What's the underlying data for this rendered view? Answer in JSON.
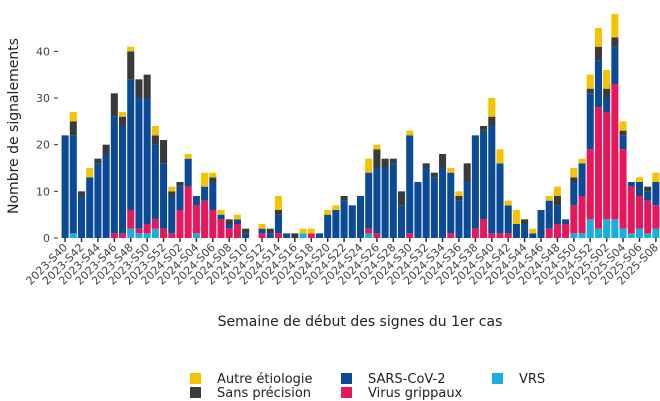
{
  "chart_data": {
    "type": "stacked_bar",
    "y_label": "Nombre de signalements",
    "x_label": "Semaine de début des signes du 1er cas",
    "categories": [
      "2023-S40",
      null,
      "2023-S42",
      null,
      "2023-S44",
      null,
      "2023-S46",
      null,
      "2023-S48",
      null,
      "2023-S50",
      null,
      "2023-S52",
      null,
      "2024-S02",
      null,
      "2024-S04",
      null,
      "2024-S06",
      null,
      "2024-S08",
      null,
      "2024-S10",
      null,
      "2024-S12",
      null,
      "2024-S14",
      null,
      "2024-S16",
      null,
      "2024-S18",
      null,
      "2024-S20",
      null,
      "2024-S22",
      null,
      "2024-S24",
      null,
      "2024-S26",
      null,
      "2024-S28",
      null,
      "2024-S30",
      null,
      "2024-S32",
      null,
      "2024-S34",
      null,
      "2024-S36",
      null,
      "2024-S38",
      null,
      "2024-S40",
      null,
      "2024-S42",
      null,
      "2024-S44",
      null,
      "2024-S46",
      null,
      "2024-S48",
      null,
      "2024-S50",
      null,
      "2024-S52",
      null,
      "2025-S02",
      null,
      "2025-S04",
      null,
      "2025-S06",
      null,
      "2025-S08"
    ],
    "series": [
      {
        "name": "Autre étiologie",
        "color": "#f5c400",
        "values": [
          0,
          2,
          0,
          2,
          0,
          0,
          0,
          1,
          1,
          0,
          0,
          2,
          0,
          1,
          0,
          1,
          0,
          3,
          1,
          1,
          0,
          1,
          0,
          0,
          1,
          0,
          3,
          0,
          0,
          1,
          1,
          0,
          1,
          1,
          0,
          0,
          0,
          3,
          1,
          0,
          0,
          0,
          1,
          0,
          0,
          0,
          0,
          1,
          1,
          0,
          0,
          0,
          4,
          3,
          1,
          3,
          0,
          1,
          0,
          1,
          2,
          0,
          2,
          1,
          3,
          4,
          4,
          5,
          2,
          0,
          1,
          0,
          2
        ]
      },
      {
        "name": "Sans précision",
        "color": "#3a3a3a",
        "values": [
          0,
          3,
          1,
          0,
          1,
          2,
          5,
          2,
          6,
          4,
          5,
          2,
          5,
          1,
          1,
          0,
          0,
          0,
          1,
          0,
          1,
          0,
          1,
          0,
          0,
          1,
          1,
          0,
          1,
          0,
          0,
          0,
          0,
          0,
          1,
          0,
          0,
          0,
          4,
          2,
          1,
          3,
          0,
          0,
          1,
          1,
          3,
          0,
          1,
          4,
          0,
          1,
          2,
          0,
          0,
          0,
          1,
          0,
          0,
          0,
          2,
          0,
          1,
          0,
          1,
          3,
          2,
          2,
          1,
          0,
          0,
          1,
          0
        ]
      },
      {
        "name": "SARS-CoV-2",
        "color": "#0a4a96",
        "values": [
          22,
          21,
          9,
          13,
          16,
          18,
          25,
          23,
          28,
          28,
          27,
          16,
          14,
          8,
          5,
          6,
          2,
          3,
          6,
          1,
          1,
          1,
          1,
          0,
          1,
          1,
          4,
          1,
          0,
          0,
          0,
          1,
          5,
          6,
          8,
          7,
          9,
          12,
          14,
          15,
          16,
          7,
          21,
          12,
          15,
          13,
          15,
          13,
          8,
          12,
          20,
          19,
          23,
          15,
          6,
          3,
          3,
          1,
          6,
          6,
          4,
          1,
          5,
          7,
          12,
          10,
          3,
          8,
          3,
          1,
          3,
          2,
          5
        ]
      },
      {
        "name": "Virus grippaux",
        "color": "#e6185c",
        "values": [
          0,
          0,
          0,
          0,
          0,
          0,
          1,
          1,
          4,
          1,
          2,
          2,
          2,
          1,
          6,
          11,
          6,
          8,
          6,
          4,
          2,
          3,
          0,
          0,
          1,
          0,
          1,
          0,
          0,
          0,
          1,
          0,
          0,
          0,
          0,
          0,
          0,
          1,
          1,
          0,
          0,
          0,
          1,
          0,
          0,
          0,
          0,
          1,
          0,
          0,
          2,
          4,
          1,
          1,
          1,
          0,
          0,
          0,
          0,
          2,
          3,
          3,
          6,
          8,
          15,
          26,
          23,
          29,
          17,
          10,
          7,
          7,
          5
        ]
      },
      {
        "name": "VRS",
        "color": "#19aee0",
        "values": [
          0,
          1,
          0,
          0,
          0,
          0,
          0,
          0,
          2,
          1,
          1,
          2,
          0,
          0,
          0,
          0,
          1,
          0,
          0,
          0,
          0,
          0,
          0,
          0,
          0,
          0,
          0,
          0,
          0,
          1,
          0,
          0,
          0,
          0,
          0,
          0,
          0,
          1,
          0,
          0,
          0,
          0,
          0,
          0,
          0,
          0,
          0,
          0,
          0,
          0,
          0,
          0,
          0,
          0,
          0,
          0,
          0,
          0,
          0,
          0,
          0,
          0,
          1,
          1,
          4,
          2,
          4,
          4,
          2,
          1,
          2,
          1,
          2
        ]
      }
    ],
    "ylim": [
      0,
      48
    ],
    "yticks": [
      0,
      10,
      20,
      30,
      40
    ],
    "grid": false
  }
}
